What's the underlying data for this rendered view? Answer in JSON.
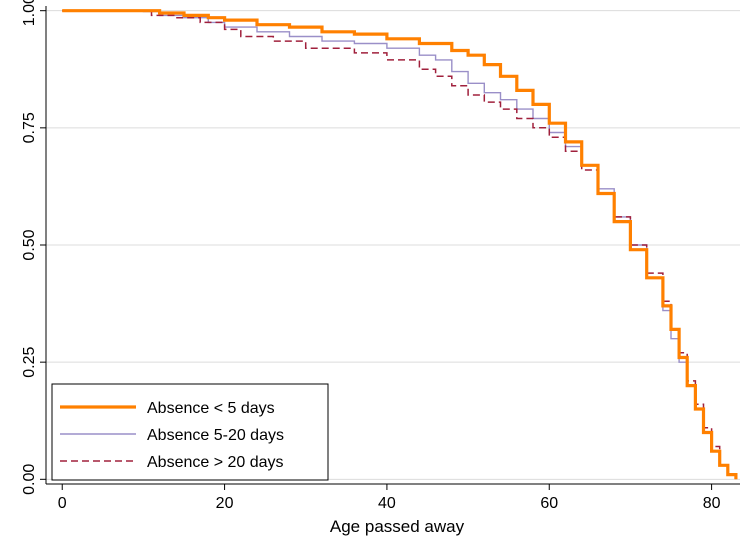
{
  "chart_data": {
    "type": "line",
    "title": "",
    "xlabel": "Age passed away",
    "ylabel": "",
    "xlim": [
      -2,
      83.5
    ],
    "ylim": [
      -0.01,
      1.01
    ],
    "x_ticks": [
      0,
      20,
      40,
      60,
      80
    ],
    "y_ticks": [
      0,
      0.25,
      0.5,
      0.75,
      1
    ],
    "x_tick_labels": [
      "0",
      "20",
      "40",
      "60",
      "80"
    ],
    "y_tick_labels": [
      "0.00",
      "0.25",
      "0.50",
      "0.75",
      "1.00"
    ],
    "grid": "horizontal",
    "legend_position": "bottom-left",
    "step": true,
    "series": [
      {
        "name": "Absence < 5 days",
        "color": "#ff8000",
        "style": "solid-thick",
        "x": [
          0,
          10,
          12,
          15,
          18,
          20,
          24,
          28,
          32,
          36,
          40,
          44,
          48,
          50,
          52,
          54,
          56,
          58,
          60,
          62,
          64,
          66,
          68,
          70,
          72,
          74,
          75,
          76,
          77,
          78,
          79,
          80,
          81,
          82,
          83
        ],
        "y": [
          1.0,
          1.0,
          0.995,
          0.99,
          0.985,
          0.98,
          0.97,
          0.965,
          0.955,
          0.95,
          0.94,
          0.93,
          0.915,
          0.905,
          0.885,
          0.86,
          0.83,
          0.8,
          0.76,
          0.72,
          0.67,
          0.61,
          0.55,
          0.49,
          0.43,
          0.37,
          0.32,
          0.26,
          0.2,
          0.15,
          0.1,
          0.06,
          0.03,
          0.01,
          0.0
        ]
      },
      {
        "name": "Absence 5-20 days",
        "color": "#9a8fc8",
        "style": "solid-thin",
        "x": [
          0,
          10,
          12,
          15,
          18,
          20,
          24,
          28,
          32,
          36,
          40,
          44,
          46,
          48,
          50,
          52,
          54,
          56,
          58,
          60,
          62,
          64,
          66,
          68,
          70,
          72,
          74,
          75,
          76,
          77,
          78,
          79,
          80,
          81,
          82,
          83
        ],
        "y": [
          1.0,
          0.998,
          0.99,
          0.985,
          0.975,
          0.965,
          0.955,
          0.945,
          0.935,
          0.93,
          0.92,
          0.905,
          0.895,
          0.87,
          0.845,
          0.825,
          0.81,
          0.79,
          0.77,
          0.74,
          0.71,
          0.67,
          0.62,
          0.56,
          0.5,
          0.43,
          0.36,
          0.3,
          0.25,
          0.2,
          0.15,
          0.1,
          0.06,
          0.03,
          0.01,
          0.0
        ]
      },
      {
        "name": "Absence > 20 days",
        "color": "#a0203c",
        "style": "dashed",
        "x": [
          0,
          8,
          11,
          14,
          17,
          20,
          22,
          26,
          30,
          36,
          40,
          44,
          46,
          48,
          50,
          52,
          54,
          56,
          58,
          60,
          62,
          64,
          66,
          68,
          70,
          72,
          74,
          75,
          76,
          77,
          78,
          79,
          80,
          81,
          82,
          83
        ],
        "y": [
          1.0,
          1.0,
          0.99,
          0.985,
          0.975,
          0.96,
          0.945,
          0.935,
          0.92,
          0.91,
          0.895,
          0.875,
          0.86,
          0.84,
          0.82,
          0.805,
          0.79,
          0.77,
          0.75,
          0.73,
          0.7,
          0.66,
          0.61,
          0.56,
          0.5,
          0.44,
          0.38,
          0.32,
          0.27,
          0.21,
          0.16,
          0.11,
          0.07,
          0.03,
          0.01,
          0.0
        ]
      }
    ]
  }
}
